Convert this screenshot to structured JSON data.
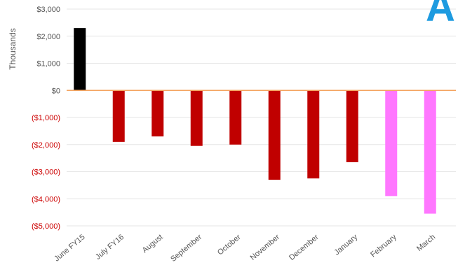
{
  "chart_data": {
    "type": "bar",
    "categories": [
      "June FY15",
      "July FY16",
      "August",
      "September",
      "October",
      "November",
      "December",
      "January",
      "February",
      "March"
    ],
    "values": [
      2300,
      -1900,
      -1700,
      -2050,
      -2000,
      -3300,
      -3250,
      -2650,
      -3900,
      -4550
    ],
    "bar_colors": [
      "#000000",
      "#c00000",
      "#c00000",
      "#c00000",
      "#c00000",
      "#c00000",
      "#c00000",
      "#c00000",
      "#ff77ff",
      "#ff77ff"
    ],
    "ylabel": "Thousands",
    "ylim": [
      -5000,
      3000
    ],
    "yticks": [
      3000,
      2000,
      1000,
      0,
      -1000,
      -2000,
      -3000,
      -4000,
      -5000
    ],
    "ytick_labels": [
      "$3,000",
      "$2,000",
      "$1,000",
      "$0",
      "($1,000)",
      "($2,000)",
      "($3,000)",
      "($4,000)",
      "($5,000)"
    ],
    "negative_tick_color": "#cc0000",
    "positive_tick_color": "#555555",
    "zero_line_color": "#f4a460",
    "gridlines": true,
    "corner_logo_text": "A",
    "corner_logo_color": "#1e9be0"
  }
}
